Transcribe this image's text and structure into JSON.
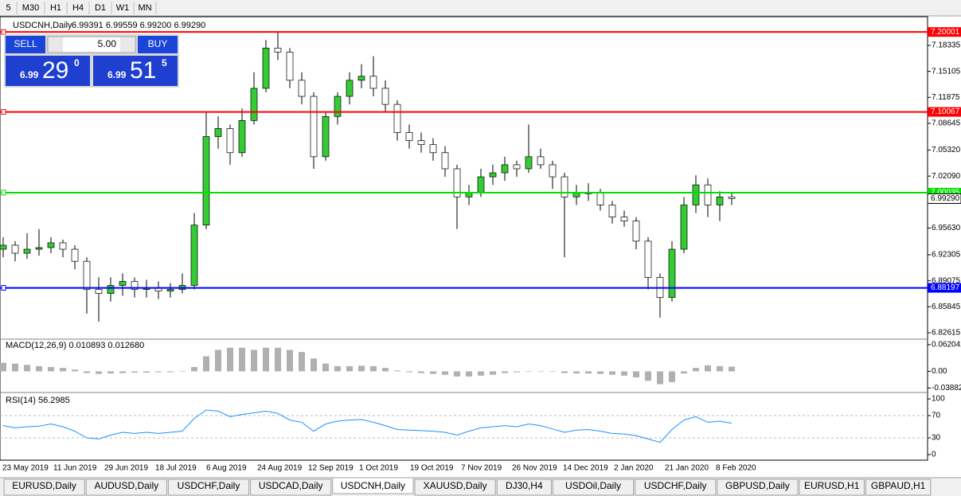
{
  "toolbar": {
    "timeframes": [
      "5",
      "M30",
      "H1",
      "H4",
      "D1",
      "W1",
      "MN"
    ]
  },
  "trade_panel": {
    "sell": "SELL",
    "buy": "BUY",
    "lots": "5.00",
    "bid": {
      "big": "6.99",
      "pips": "29",
      "frac": "0"
    },
    "ask": {
      "big": "6.99",
      "pips": "51",
      "frac": "5"
    }
  },
  "tabs": {
    "items": [
      "EURUSD,Daily",
      "AUDUSD,Daily",
      "USDCHF,Daily",
      "USDCAD,Daily",
      "USDCNH,Daily",
      "XAUUSD,Daily",
      "DJ30,H4",
      "USDOil,Daily",
      "USDCHF,Daily",
      "GBPUSD,Daily",
      "EURUSD,H1",
      "GBPAUD,H1"
    ],
    "active": 4
  },
  "chart_data": {
    "type": "candlestick",
    "symbol": "USDCNH,Daily",
    "quote": "6.99391 6.99559 6.99200 6.99290",
    "up_color": "#33cc33",
    "down_color": "#ffffff",
    "ylim": [
      6.8192,
      7.218
    ],
    "yticks": [
      7.18335,
      7.15105,
      7.11875,
      7.08645,
      {
        "value": 7.0532,
        "label": "7.05320"
      },
      {
        "value": 7.0209,
        "label": "7.02090"
      },
      {
        "value": 6.9563,
        "label": "6.95630"
      },
      6.92305,
      6.89075,
      6.85845,
      6.82615
    ],
    "hlines": [
      {
        "value": 7.20001,
        "color": "#ff0000"
      },
      {
        "value": 7.10067,
        "color": "#ff0000"
      },
      {
        "value": 7.00035,
        "color": "#00e000"
      },
      {
        "value": 6.88197,
        "color": "#0000ff"
      }
    ],
    "current_price": {
      "value": 6.9929,
      "label": "6.99290"
    },
    "x_labels": [
      "23 May 2019",
      "11 Jun 2019",
      "29 Jun 2019",
      "18 Jul 2019",
      "6 Aug 2019",
      "24 Aug 2019",
      "12 Sep 2019",
      "1 Oct 2019",
      "19 Oct 2019",
      "7 Nov 2019",
      "26 Nov 2019",
      "14 Dec 2019",
      "2 Jan 2020",
      "21 Jan 2020",
      "8 Feb 2020"
    ],
    "candles": [
      [
        6.93,
        6.945,
        6.92,
        6.935
      ],
      [
        6.935,
        6.94,
        6.915,
        6.925
      ],
      [
        6.925,
        6.95,
        6.918,
        6.93
      ],
      [
        6.93,
        6.955,
        6.922,
        6.932
      ],
      [
        6.932,
        6.945,
        6.925,
        6.938
      ],
      [
        6.938,
        6.942,
        6.92,
        6.93
      ],
      [
        6.93,
        6.935,
        6.905,
        6.915
      ],
      [
        6.915,
        6.92,
        6.85,
        6.88
      ],
      [
        6.88,
        6.895,
        6.84,
        6.875
      ],
      [
        6.875,
        6.895,
        6.865,
        6.885
      ],
      [
        6.885,
        6.9,
        6.872,
        6.89
      ],
      [
        6.89,
        6.895,
        6.87,
        6.88
      ],
      [
        6.88,
        6.892,
        6.87,
        6.882
      ],
      [
        6.882,
        6.89,
        6.868,
        6.878
      ],
      [
        6.878,
        6.888,
        6.87,
        6.88
      ],
      [
        6.88,
        6.9,
        6.875,
        6.885
      ],
      [
        6.885,
        6.975,
        6.88,
        6.96
      ],
      [
        6.96,
        7.1,
        6.955,
        7.07
      ],
      [
        7.07,
        7.095,
        7.055,
        7.08
      ],
      [
        7.08,
        7.085,
        7.035,
        7.05
      ],
      [
        7.05,
        7.105,
        7.045,
        7.09
      ],
      [
        7.09,
        7.15,
        7.085,
        7.13
      ],
      [
        7.13,
        7.19,
        7.125,
        7.18
      ],
      [
        7.18,
        7.2,
        7.165,
        7.175
      ],
      [
        7.175,
        7.18,
        7.13,
        7.14
      ],
      [
        7.14,
        7.15,
        7.11,
        7.12
      ],
      [
        7.12,
        7.125,
        7.03,
        7.045
      ],
      [
        7.045,
        7.1,
        7.04,
        7.095
      ],
      [
        7.095,
        7.125,
        7.085,
        7.12
      ],
      [
        7.12,
        7.15,
        7.11,
        7.14
      ],
      [
        7.14,
        7.16,
        7.13,
        7.145
      ],
      [
        7.145,
        7.17,
        7.12,
        7.13
      ],
      [
        7.13,
        7.14,
        7.1,
        7.11
      ],
      [
        7.11,
        7.115,
        7.065,
        7.075
      ],
      [
        7.075,
        7.085,
        7.055,
        7.065
      ],
      [
        7.065,
        7.075,
        7.05,
        7.06
      ],
      [
        7.06,
        7.068,
        7.04,
        7.05
      ],
      [
        7.05,
        7.058,
        7.02,
        7.03
      ],
      [
        7.03,
        7.035,
        6.955,
        6.995
      ],
      [
        6.995,
        7.01,
        6.985,
        7.0
      ],
      [
        7.0,
        7.03,
        6.995,
        7.02
      ],
      [
        7.02,
        7.035,
        7.01,
        7.025
      ],
      [
        7.025,
        7.045,
        7.015,
        7.035
      ],
      [
        7.035,
        7.04,
        7.02,
        7.03
      ],
      [
        7.03,
        7.085,
        7.025,
        7.045
      ],
      [
        7.045,
        7.055,
        7.03,
        7.035
      ],
      [
        7.035,
        7.04,
        7.005,
        7.02
      ],
      [
        7.02,
        7.025,
        6.92,
        6.995
      ],
      [
        6.995,
        7.01,
        6.985,
        7.0
      ],
      [
        7.0,
        7.012,
        6.99,
        7.0
      ],
      [
        7.0,
        7.005,
        6.978,
        6.985
      ],
      [
        6.985,
        6.99,
        6.962,
        6.97
      ],
      [
        6.97,
        6.978,
        6.958,
        6.965
      ],
      [
        6.965,
        6.97,
        6.93,
        6.94
      ],
      [
        6.94,
        6.945,
        6.88,
        6.895
      ],
      [
        6.895,
        6.9,
        6.845,
        6.87
      ],
      [
        6.87,
        6.94,
        6.865,
        6.93
      ],
      [
        6.93,
        6.995,
        6.925,
        6.985
      ],
      [
        6.985,
        7.022,
        6.975,
        7.01
      ],
      [
        7.01,
        7.018,
        6.97,
        6.985
      ],
      [
        6.985,
        7.002,
        6.965,
        6.995
      ],
      [
        6.995,
        7.0,
        6.985,
        6.993
      ]
    ],
    "macd": {
      "label": "MACD(12,26,9) 0.010893 0.012680",
      "ylim": [
        -0.0474,
        0.0712
      ],
      "yticks": [
        0.062042,
        {
          "value": 0,
          "label": "0.00"
        },
        -0.038821
      ],
      "color": "#b0b0b0",
      "values": [
        0.02,
        0.018,
        0.015,
        0.012,
        0.01,
        0.008,
        0.004,
        -0.004,
        -0.006,
        -0.005,
        -0.004,
        -0.003,
        -0.003,
        -0.002,
        -0.002,
        -0.001,
        0.01,
        0.035,
        0.05,
        0.055,
        0.055,
        0.05,
        0.055,
        0.055,
        0.05,
        0.045,
        0.03,
        0.018,
        0.012,
        0.012,
        0.013,
        0.012,
        0.008,
        0.002,
        -0.002,
        -0.004,
        -0.006,
        -0.008,
        -0.012,
        -0.012,
        -0.01,
        -0.008,
        -0.004,
        -0.002,
        0,
        0.001,
        0,
        -0.004,
        -0.005,
        -0.005,
        -0.006,
        -0.008,
        -0.01,
        -0.014,
        -0.022,
        -0.03,
        -0.025,
        -0.005,
        0.008,
        0.014,
        0.012,
        0.010893
      ]
    },
    "rsi": {
      "label": "RSI(14) 56.2985",
      "ylim": [
        -10,
        108.6
      ],
      "yticks": [
        100,
        70,
        30,
        0
      ],
      "color": "#1e90ff",
      "values": [
        52,
        48,
        50,
        51,
        55,
        50,
        42,
        30,
        28,
        35,
        40,
        38,
        40,
        38,
        40,
        42,
        65,
        80,
        78,
        68,
        72,
        75,
        78,
        74,
        62,
        58,
        42,
        55,
        60,
        62,
        63,
        58,
        52,
        45,
        44,
        43,
        42,
        40,
        35,
        42,
        48,
        50,
        52,
        50,
        55,
        52,
        46,
        40,
        44,
        45,
        42,
        38,
        37,
        34,
        28,
        22,
        45,
        62,
        68,
        58,
        60,
        56.2985
      ]
    }
  }
}
